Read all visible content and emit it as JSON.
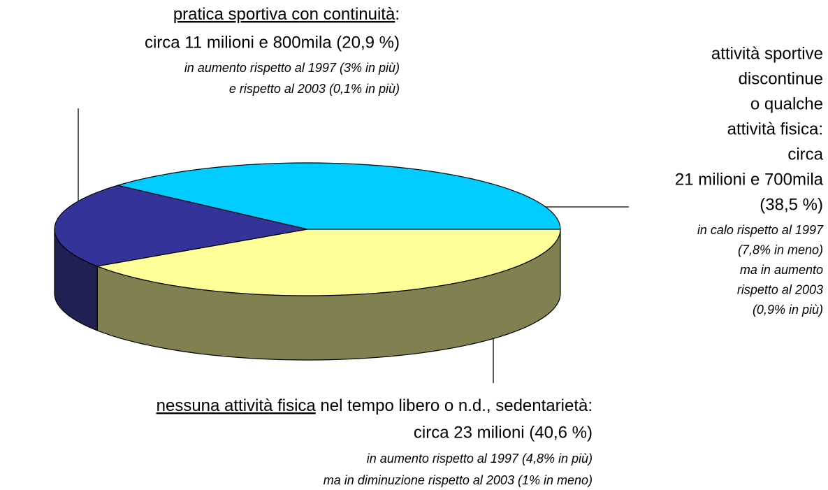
{
  "chart_data": {
    "type": "pie",
    "values": [
      38.5,
      20.9,
      40.6
    ],
    "colors": [
      "#00ccff",
      "#333399",
      "#ffff99"
    ],
    "side_colors": [
      "#0088aa",
      "#202052",
      "#808050"
    ],
    "annotations": [
      {
        "lines": [
          "attività sportive",
          "discontinue",
          "o qualche",
          "attività fisica:",
          "circa",
          "21 milioni e 700mila",
          "(38,5 %)"
        ],
        "notes": [
          "in calo rispetto al 1997",
          "(7,8% in meno)",
          "ma in aumento",
          "rispetto al 2003",
          "(0,9% in più)"
        ]
      },
      {
        "underlined": "pratica sportiva con continuità",
        "after": ":",
        "lines": [
          "circa 11 milioni e 800mila (20,9 %)"
        ],
        "notes": [
          "in aumento rispetto al 1997 (3%  in più)",
          "e rispetto al 2003 (0,1% in più)"
        ]
      },
      {
        "underlined": "nessuna attività fisica",
        "after": " nel tempo libero o n.d., sedentarietà:",
        "lines": [
          "circa 23 milioni (40,6 %)"
        ],
        "notes": [
          "in aumento rispetto al 1997 (4,8% in più)",
          "ma in diminuzione rispetto al 2003 (1% in meno)"
        ]
      }
    ]
  }
}
